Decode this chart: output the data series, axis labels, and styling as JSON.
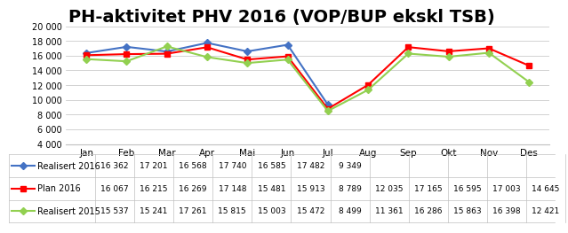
{
  "title": "PH-aktivitet PHV 2016 (VOP/BUP ekskl TSB)",
  "months": [
    "Jan",
    "Feb",
    "Mar",
    "Apr",
    "Mai",
    "Jun",
    "Jul",
    "Aug",
    "Sep",
    "Okt",
    "Nov",
    "Des"
  ],
  "series": [
    {
      "label": "Realisert 2016",
      "color": "#4472C4",
      "marker": "D",
      "values": [
        16362,
        17201,
        16568,
        17740,
        16585,
        17482,
        9349,
        null,
        null,
        null,
        null,
        null
      ]
    },
    {
      "label": "Plan 2016",
      "color": "#FF0000",
      "marker": "s",
      "values": [
        16067,
        16215,
        16269,
        17148,
        15481,
        15913,
        8789,
        12035,
        17165,
        16595,
        17003,
        14645
      ]
    },
    {
      "label": "Realisert 2015",
      "color": "#92D050",
      "marker": "D",
      "values": [
        15537,
        15241,
        17261,
        15815,
        15003,
        15472,
        8499,
        11361,
        16286,
        15863,
        16398,
        12421
      ]
    }
  ],
  "ylim": [
    4000,
    20000
  ],
  "yticks": [
    4000,
    6000,
    8000,
    10000,
    12000,
    14000,
    16000,
    18000,
    20000
  ],
  "ytick_labels": [
    "4 000",
    "6 000",
    "8 000",
    "10 000",
    "12 000",
    "14 000",
    "16 000",
    "18 000",
    "20 000"
  ],
  "background_color": "#FFFFFF",
  "grid_color": "#C0C0C0",
  "title_fontsize": 14,
  "table_rows": [
    [
      "Realisert 2016",
      "16 362",
      "17 201",
      "16 568",
      "17 740",
      "16 585",
      "17 482",
      "9 349",
      "",
      "",
      "",
      "",
      ""
    ],
    [
      "Plan 2016",
      "16 067",
      "16 215",
      "16 269",
      "17 148",
      "15 481",
      "15 913",
      "8 789",
      "12 035",
      "17 165",
      "16 595",
      "17 003",
      "14 645"
    ],
    [
      "Realisert 2015",
      "15 537",
      "15 241",
      "17 261",
      "15 815",
      "15 003",
      "15 472",
      "8 499",
      "11 361",
      "16 286",
      "15 863",
      "16 398",
      "12 421"
    ]
  ],
  "table_row_colors": [
    "#4472C4",
    "#FF0000",
    "#92D050"
  ],
  "table_markers": [
    "D",
    "s",
    "D"
  ]
}
